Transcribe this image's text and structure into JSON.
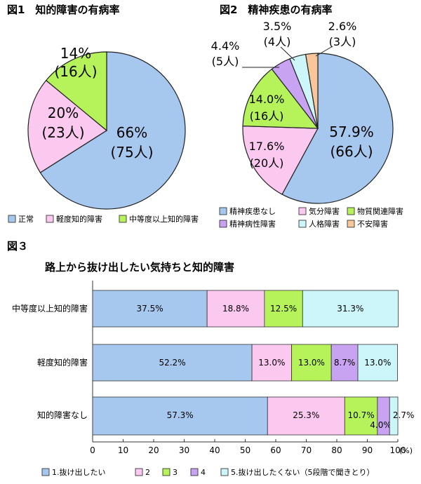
{
  "chart_data": [
    {
      "type": "pie",
      "id": "fig1",
      "title": "図1　知的障害の有病率",
      "slices": [
        {
          "name": "正常",
          "value": 66,
          "label": "66%",
          "sublabel": "(75人)",
          "color": "#a7c8ee"
        },
        {
          "name": "軽度知的障害",
          "value": 20,
          "label": "20%",
          "sublabel": "(23人)",
          "color": "#fbc8f0"
        },
        {
          "name": "中等度以上知的障害",
          "value": 14,
          "label": "14%",
          "sublabel": "(16人)",
          "color": "#b6f25a"
        }
      ]
    },
    {
      "type": "pie",
      "id": "fig2",
      "title": "図2　精神疾患の有病率",
      "slices": [
        {
          "name": "精神疾患なし",
          "value": 57.9,
          "label": "57.9%",
          "sublabel": "(66人)",
          "color": "#a7c8ee"
        },
        {
          "name": "気分障害",
          "value": 17.6,
          "label": "17.6%",
          "sublabel": "(20人)",
          "color": "#fbc8f0"
        },
        {
          "name": "物質関連障害",
          "value": 14.0,
          "label": "14.0%",
          "sublabel": "(16人)",
          "color": "#b6f25a"
        },
        {
          "name": "精神病性障害",
          "value": 4.4,
          "label": "4.4%",
          "sublabel": "(5人)",
          "color": "#c8a3f2"
        },
        {
          "name": "人格障害",
          "value": 3.5,
          "label": "3.5%",
          "sublabel": "(4人)",
          "color": "#cdf6fb"
        },
        {
          "name": "不安障害",
          "value": 2.6,
          "label": "2.6%",
          "sublabel": "(3人)",
          "color": "#f9c69a"
        }
      ]
    },
    {
      "type": "bar",
      "orientation": "horizontal",
      "stacked": true,
      "id": "fig3",
      "fig_label": "図３",
      "title": "路上から抜け出したい気持ちと知的障害",
      "categories": [
        "中等度以上知的障害",
        "軽度知的障害",
        "知的障害なし"
      ],
      "series": [
        {
          "name": "1.抜け出したい",
          "color": "#a7c8ee",
          "values": [
            37.5,
            52.2,
            57.3
          ],
          "labels": [
            "37.5%",
            "52.2%",
            "57.3%"
          ]
        },
        {
          "name": "2",
          "color": "#fbc8f0",
          "values": [
            18.8,
            13.0,
            25.3
          ],
          "labels": [
            "18.8%",
            "13.0%",
            "25.3%"
          ]
        },
        {
          "name": "3",
          "color": "#b6f25a",
          "values": [
            12.5,
            13.0,
            10.7
          ],
          "labels": [
            "12.5%",
            "13.0%",
            "10.7%"
          ]
        },
        {
          "name": "4",
          "color": "#c8a3f2",
          "values": [
            0,
            8.7,
            4.0
          ],
          "labels": [
            "",
            "8.7%",
            "4.0%"
          ]
        },
        {
          "name": "5.抜け出したくない（5段階で聞きとり）",
          "color": "#cdf6fb",
          "values": [
            31.3,
            13.0,
            2.7
          ],
          "labels": [
            "31.3%",
            "13.0%",
            "2.7%"
          ]
        }
      ],
      "xlim": [
        0,
        100
      ],
      "xticks": [
        "0",
        "10",
        "20",
        "30",
        "40",
        "50",
        "60",
        "70",
        "80",
        "90",
        "100"
      ],
      "xunit": "(%)"
    }
  ]
}
